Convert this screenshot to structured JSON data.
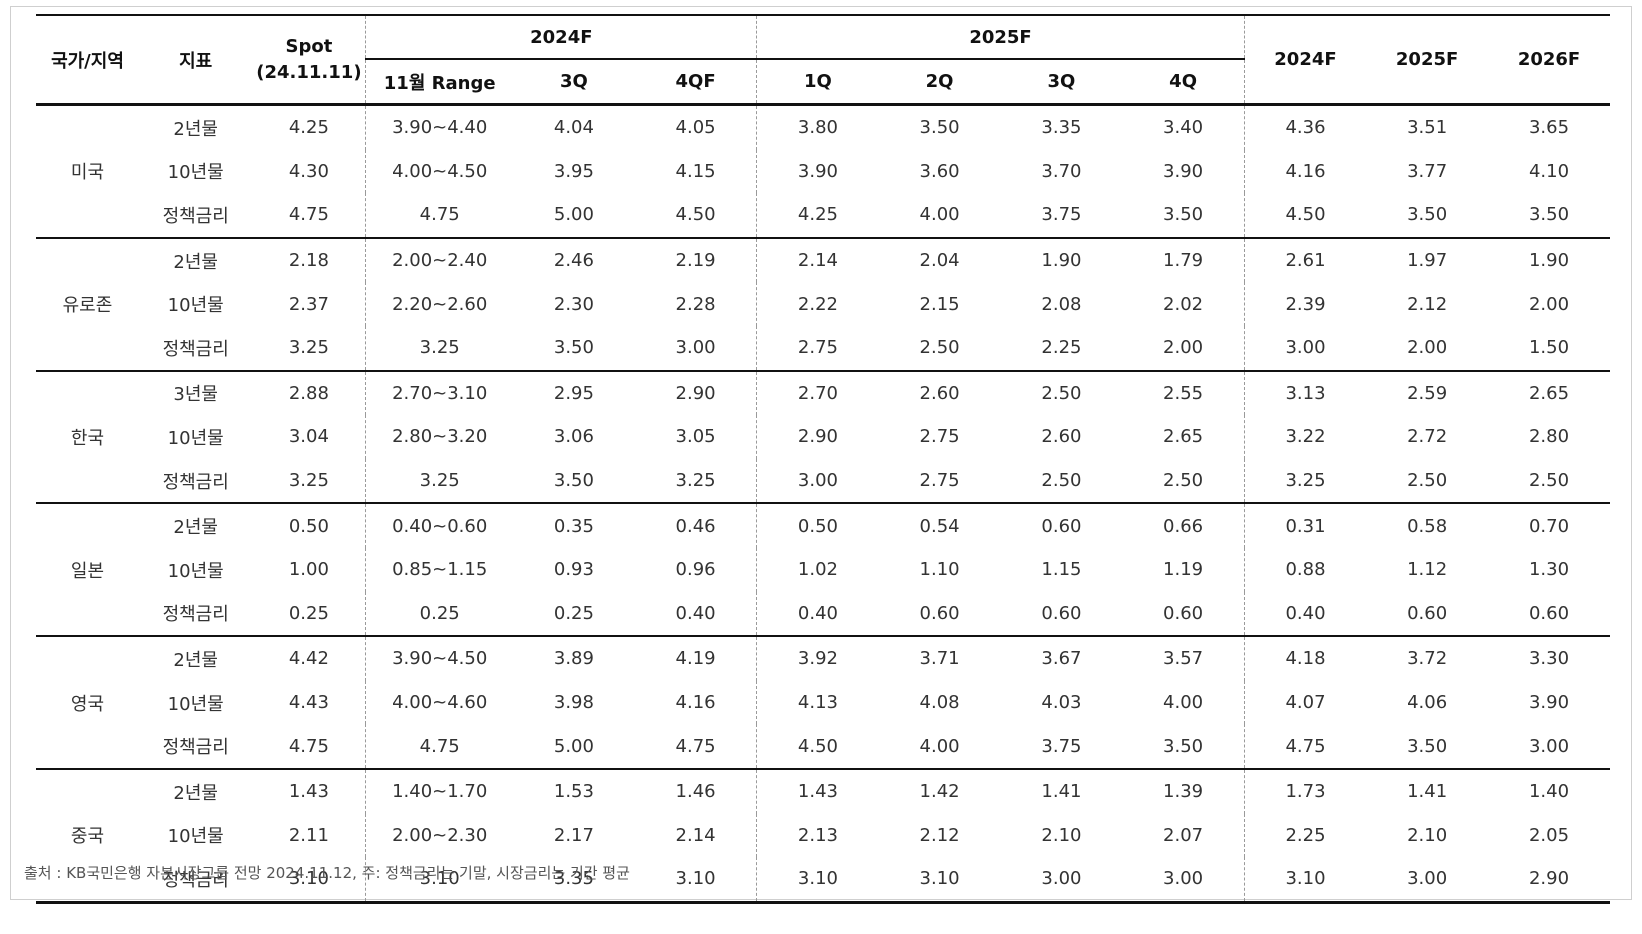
{
  "header": {
    "country": "국가/지역",
    "indicator": "지표",
    "spot_line1": "Spot",
    "spot_line2": "(24.11.11)",
    "group_2024": "2024F",
    "group_2025": "2025F",
    "sub_2024": [
      "11월 Range",
      "3Q",
      "4QF"
    ],
    "sub_2025": [
      "1Q",
      "2Q",
      "3Q",
      "4Q"
    ],
    "annual": [
      "2024F",
      "2025F",
      "2026F"
    ]
  },
  "groups": [
    {
      "name": "미국",
      "rows": [
        {
          "ind": "2년물",
          "spot": "4.25",
          "range": "3.90~4.40",
          "q3_24": "4.04",
          "q4_24": "4.05",
          "q1_25": "3.80",
          "q2_25": "3.50",
          "q3_25": "3.35",
          "q4_25": "3.40",
          "y2024": "4.36",
          "y2025": "3.51",
          "y2026": "3.65"
        },
        {
          "ind": "10년물",
          "spot": "4.30",
          "range": "4.00~4.50",
          "q3_24": "3.95",
          "q4_24": "4.15",
          "q1_25": "3.90",
          "q2_25": "3.60",
          "q3_25": "3.70",
          "q4_25": "3.90",
          "y2024": "4.16",
          "y2025": "3.77",
          "y2026": "4.10"
        },
        {
          "ind": "정책금리",
          "spot": "4.75",
          "range": "4.75",
          "q3_24": "5.00",
          "q4_24": "4.50",
          "q1_25": "4.25",
          "q2_25": "4.00",
          "q3_25": "3.75",
          "q4_25": "3.50",
          "y2024": "4.50",
          "y2025": "3.50",
          "y2026": "3.50"
        }
      ]
    },
    {
      "name": "유로존",
      "rows": [
        {
          "ind": "2년물",
          "spot": "2.18",
          "range": "2.00~2.40",
          "q3_24": "2.46",
          "q4_24": "2.19",
          "q1_25": "2.14",
          "q2_25": "2.04",
          "q3_25": "1.90",
          "q4_25": "1.79",
          "y2024": "2.61",
          "y2025": "1.97",
          "y2026": "1.90"
        },
        {
          "ind": "10년물",
          "spot": "2.37",
          "range": "2.20~2.60",
          "q3_24": "2.30",
          "q4_24": "2.28",
          "q1_25": "2.22",
          "q2_25": "2.15",
          "q3_25": "2.08",
          "q4_25": "2.02",
          "y2024": "2.39",
          "y2025": "2.12",
          "y2026": "2.00"
        },
        {
          "ind": "정책금리",
          "spot": "3.25",
          "range": "3.25",
          "q3_24": "3.50",
          "q4_24": "3.00",
          "q1_25": "2.75",
          "q2_25": "2.50",
          "q3_25": "2.25",
          "q4_25": "2.00",
          "y2024": "3.00",
          "y2025": "2.00",
          "y2026": "1.50"
        }
      ]
    },
    {
      "name": "한국",
      "rows": [
        {
          "ind": "3년물",
          "spot": "2.88",
          "range": "2.70~3.10",
          "q3_24": "2.95",
          "q4_24": "2.90",
          "q1_25": "2.70",
          "q2_25": "2.60",
          "q3_25": "2.50",
          "q4_25": "2.55",
          "y2024": "3.13",
          "y2025": "2.59",
          "y2026": "2.65"
        },
        {
          "ind": "10년물",
          "spot": "3.04",
          "range": "2.80~3.20",
          "q3_24": "3.06",
          "q4_24": "3.05",
          "q1_25": "2.90",
          "q2_25": "2.75",
          "q3_25": "2.60",
          "q4_25": "2.65",
          "y2024": "3.22",
          "y2025": "2.72",
          "y2026": "2.80"
        },
        {
          "ind": "정책금리",
          "spot": "3.25",
          "range": "3.25",
          "q3_24": "3.50",
          "q4_24": "3.25",
          "q1_25": "3.00",
          "q2_25": "2.75",
          "q3_25": "2.50",
          "q4_25": "2.50",
          "y2024": "3.25",
          "y2025": "2.50",
          "y2026": "2.50"
        }
      ]
    },
    {
      "name": "일본",
      "rows": [
        {
          "ind": "2년물",
          "spot": "0.50",
          "range": "0.40~0.60",
          "q3_24": "0.35",
          "q4_24": "0.46",
          "q1_25": "0.50",
          "q2_25": "0.54",
          "q3_25": "0.60",
          "q4_25": "0.66",
          "y2024": "0.31",
          "y2025": "0.58",
          "y2026": "0.70"
        },
        {
          "ind": "10년물",
          "spot": "1.00",
          "range": "0.85~1.15",
          "q3_24": "0.93",
          "q4_24": "0.96",
          "q1_25": "1.02",
          "q2_25": "1.10",
          "q3_25": "1.15",
          "q4_25": "1.19",
          "y2024": "0.88",
          "y2025": "1.12",
          "y2026": "1.30"
        },
        {
          "ind": "정책금리",
          "spot": "0.25",
          "range": "0.25",
          "q3_24": "0.25",
          "q4_24": "0.40",
          "q1_25": "0.40",
          "q2_25": "0.60",
          "q3_25": "0.60",
          "q4_25": "0.60",
          "y2024": "0.40",
          "y2025": "0.60",
          "y2026": "0.60"
        }
      ]
    },
    {
      "name": "영국",
      "rows": [
        {
          "ind": "2년물",
          "spot": "4.42",
          "range": "3.90~4.50",
          "q3_24": "3.89",
          "q4_24": "4.19",
          "q1_25": "3.92",
          "q2_25": "3.71",
          "q3_25": "3.67",
          "q4_25": "3.57",
          "y2024": "4.18",
          "y2025": "3.72",
          "y2026": "3.30"
        },
        {
          "ind": "10년물",
          "spot": "4.43",
          "range": "4.00~4.60",
          "q3_24": "3.98",
          "q4_24": "4.16",
          "q1_25": "4.13",
          "q2_25": "4.08",
          "q3_25": "4.03",
          "q4_25": "4.00",
          "y2024": "4.07",
          "y2025": "4.06",
          "y2026": "3.90"
        },
        {
          "ind": "정책금리",
          "spot": "4.75",
          "range": "4.75",
          "q3_24": "5.00",
          "q4_24": "4.75",
          "q1_25": "4.50",
          "q2_25": "4.00",
          "q3_25": "3.75",
          "q4_25": "3.50",
          "y2024": "4.75",
          "y2025": "3.50",
          "y2026": "3.00"
        }
      ]
    },
    {
      "name": "중국",
      "rows": [
        {
          "ind": "2년물",
          "spot": "1.43",
          "range": "1.40~1.70",
          "q3_24": "1.53",
          "q4_24": "1.46",
          "q1_25": "1.43",
          "q2_25": "1.42",
          "q3_25": "1.41",
          "q4_25": "1.39",
          "y2024": "1.73",
          "y2025": "1.41",
          "y2026": "1.40"
        },
        {
          "ind": "10년물",
          "spot": "2.11",
          "range": "2.00~2.30",
          "q3_24": "2.17",
          "q4_24": "2.14",
          "q1_25": "2.13",
          "q2_25": "2.12",
          "q3_25": "2.10",
          "q4_25": "2.07",
          "y2024": "2.25",
          "y2025": "2.10",
          "y2026": "2.05"
        },
        {
          "ind": "정책금리",
          "spot": "3.10",
          "range": "3.10",
          "q3_24": "3.35",
          "q4_24": "3.10",
          "q1_25": "3.10",
          "q2_25": "3.10",
          "q3_25": "3.00",
          "q4_25": "3.00",
          "y2024": "3.10",
          "y2025": "3.00",
          "y2026": "2.90"
        }
      ]
    }
  ],
  "source": "출처 : KB국민은행 자본시장그룹 전망 2024.11.12, 주: 정책금리는 기말, 시장금리는 기간 평균"
}
